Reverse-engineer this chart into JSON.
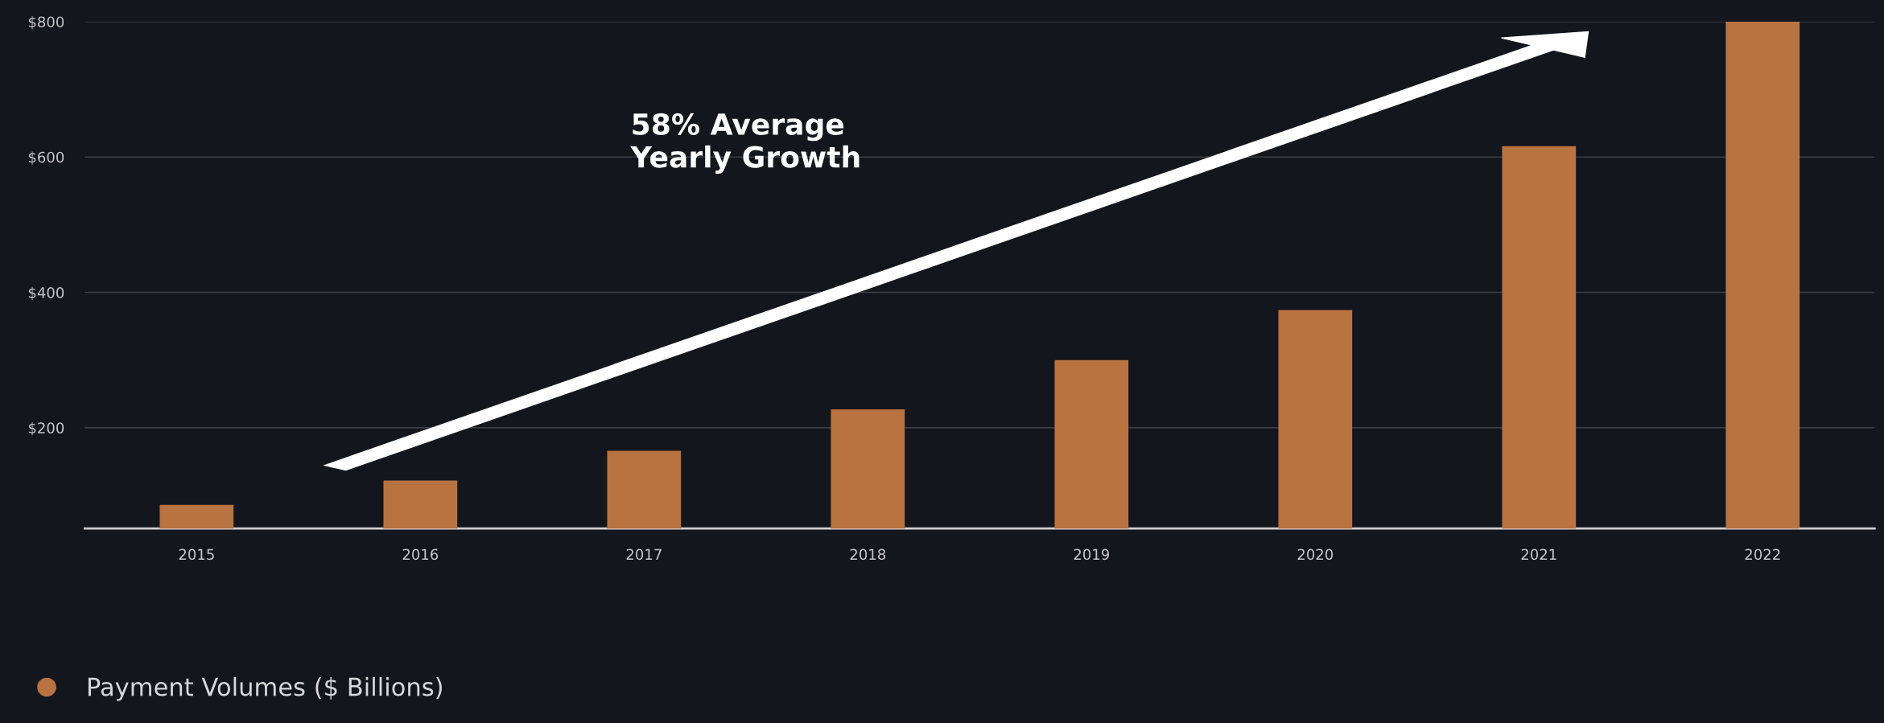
{
  "chart_data": {
    "type": "bar",
    "categories": [
      "2015",
      "2016",
      "2017",
      "2018",
      "2019",
      "2020",
      "2021",
      "2022"
    ],
    "series": [
      {
        "name": "Payment Volumes ($ Billions)",
        "color": "#b87340",
        "values": [
          86,
          122,
          166,
          227,
          300,
          374,
          616,
          800
        ]
      }
    ],
    "ylim": [
      51,
      800
    ],
    "yticks": [
      {
        "value": 200,
        "label": "$200"
      },
      {
        "value": 400,
        "label": "$400"
      },
      {
        "value": 600,
        "label": "$600"
      },
      {
        "value": 800,
        "label": "$800"
      }
    ],
    "grid": "y",
    "legend": "bottom left",
    "annotations": [
      "58% Average\nYearly Growth"
    ]
  }
}
